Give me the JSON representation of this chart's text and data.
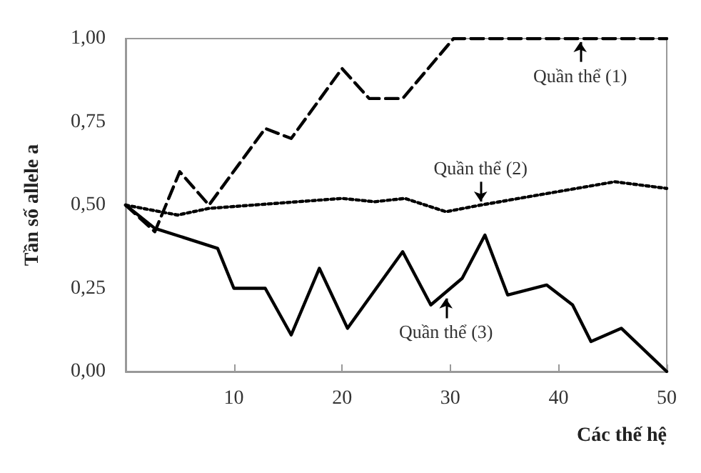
{
  "chart_data": {
    "type": "line",
    "xlabel": "Các thế hệ",
    "ylabel": "Tần số allele a",
    "xlim": [
      0,
      50
    ],
    "xticks": [
      10,
      20,
      30,
      40,
      50
    ],
    "ylim": [
      0,
      1
    ],
    "yticks": [
      {
        "value": 0,
        "label": "0,00"
      },
      {
        "value": 0.25,
        "label": "0,25"
      },
      {
        "value": 0.5,
        "label": "0,50"
      },
      {
        "value": 0.75,
        "label": "0,75"
      },
      {
        "value": 1,
        "label": "1,00"
      }
    ],
    "grid": false,
    "marker": "none",
    "series": [
      {
        "color": "#000000",
        "line_style": "dashed",
        "x": [
          0,
          2.7,
          5,
          7.7,
          12.9,
          15.3,
          20,
          22.5,
          25.6,
          30.3,
          50
        ],
        "values": [
          0.5,
          0.42,
          0.6,
          0.5,
          0.73,
          0.7,
          0.91,
          0.82,
          0.82,
          1,
          1
        ]
      },
      {
        "color": "#000000",
        "line_style": "dotted",
        "x": [
          0,
          4.8,
          7.7,
          20,
          23,
          25.8,
          29.6,
          32.8,
          45.2,
          50
        ],
        "values": [
          0.5,
          0.47,
          0.49,
          0.52,
          0.51,
          0.52,
          0.48,
          0.5,
          0.57,
          0.55
        ]
      },
      {
        "color": "#000000",
        "line_style": "solid",
        "x": [
          0,
          2.7,
          8.5,
          10,
          12.9,
          15.3,
          17.9,
          20.5,
          25.6,
          28.2,
          31.1,
          33.2,
          35.3,
          38.9,
          41.3,
          43,
          45.8,
          50
        ],
        "values": [
          0.5,
          0.43,
          0.37,
          0.25,
          0.25,
          0.11,
          0.31,
          0.13,
          0.36,
          0.2,
          0.28,
          0.41,
          0.23,
          0.26,
          0.2,
          0.09,
          0.13,
          0
        ]
      }
    ],
    "annotations": [
      {
        "text": "Quần thể (1)",
        "x": 42,
        "y": 1
      },
      {
        "text": "Quần thể (2)",
        "x": 32.8,
        "y": 0.5
      },
      {
        "text": "Quần thể (3)",
        "x": 29.6,
        "y": 0.23
      }
    ]
  }
}
